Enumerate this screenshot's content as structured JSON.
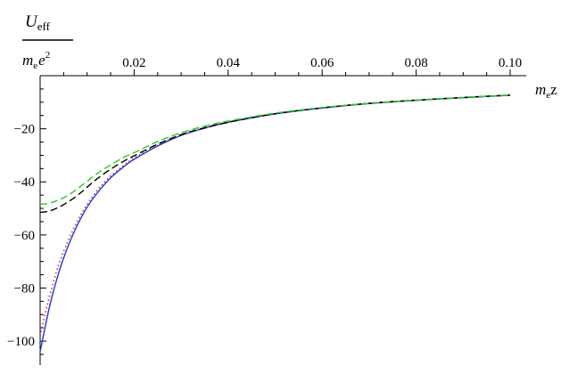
{
  "chart_data": {
    "type": "line",
    "title": "",
    "ylabel": {
      "num_main": "U",
      "num_sub": "eff",
      "den_m": "m",
      "den_m_sub": "e",
      "den_e": "e",
      "den_pow": "2"
    },
    "xlabel": {
      "m": "m",
      "m_sub": "e",
      "var": "z"
    },
    "xlim": [
      0,
      0.1
    ],
    "ylim": [
      -105,
      0
    ],
    "x_ticks": [
      "0.02",
      "0.04",
      "0.06",
      "0.08",
      "0.10"
    ],
    "y_ticks": [
      "-20",
      "-40",
      "-60",
      "-80",
      "-100"
    ],
    "grid": false,
    "series": [
      {
        "style": "solid",
        "color": "#2233dd",
        "x": [
          0.0,
          0.002,
          0.004,
          0.006,
          0.008,
          0.01,
          0.012,
          0.015,
          0.018,
          0.02,
          0.025,
          0.03,
          0.035,
          0.04,
          0.05,
          0.06,
          0.07,
          0.08,
          0.09,
          0.1
        ],
        "y": [
          -104,
          -87,
          -74,
          -64,
          -56,
          -49.5,
          -44.5,
          -38.5,
          -34,
          -31.5,
          -26.5,
          -22.5,
          -19.8,
          -17.6,
          -14.4,
          -12.2,
          -10.5,
          -9.3,
          -8.3,
          -7.4
        ]
      },
      {
        "style": "dotted",
        "color": "#c0392b",
        "x": [
          0.0,
          0.002,
          0.004,
          0.006,
          0.008,
          0.01,
          0.012,
          0.015,
          0.018,
          0.02,
          0.025,
          0.03,
          0.035,
          0.04,
          0.05,
          0.06,
          0.07,
          0.08,
          0.09,
          0.1
        ],
        "y": [
          -98,
          -83,
          -71,
          -62,
          -54.5,
          -48.5,
          -43.5,
          -37.8,
          -33.5,
          -31,
          -26.2,
          -22.3,
          -19.6,
          -17.5,
          -14.3,
          -12.1,
          -10.4,
          -9.2,
          -8.2,
          -7.3
        ]
      },
      {
        "style": "dashed",
        "color": "#000000",
        "x": [
          0.0,
          0.002,
          0.004,
          0.006,
          0.008,
          0.01,
          0.012,
          0.015,
          0.018,
          0.02,
          0.025,
          0.03,
          0.035,
          0.04,
          0.05,
          0.06,
          0.07,
          0.08,
          0.09,
          0.1
        ],
        "y": [
          -51.5,
          -51,
          -49.5,
          -47.5,
          -45,
          -42,
          -39,
          -35.2,
          -32,
          -30.2,
          -25.8,
          -22.2,
          -19.6,
          -17.5,
          -14.3,
          -12.1,
          -10.4,
          -9.2,
          -8.2,
          -7.3
        ]
      },
      {
        "style": "dashed",
        "color": "#22cc22",
        "x": [
          0.0,
          0.002,
          0.004,
          0.006,
          0.008,
          0.01,
          0.012,
          0.015,
          0.018,
          0.02,
          0.025,
          0.03,
          0.035,
          0.04,
          0.05,
          0.06,
          0.07,
          0.08,
          0.09,
          0.1
        ],
        "y": [
          -48.5,
          -48,
          -46.8,
          -45,
          -42.5,
          -39.8,
          -37,
          -33.6,
          -30.6,
          -29,
          -24.8,
          -21.5,
          -19,
          -17.1,
          -14.1,
          -12,
          -10.4,
          -9.2,
          -8.2,
          -7.3
        ]
      }
    ]
  }
}
